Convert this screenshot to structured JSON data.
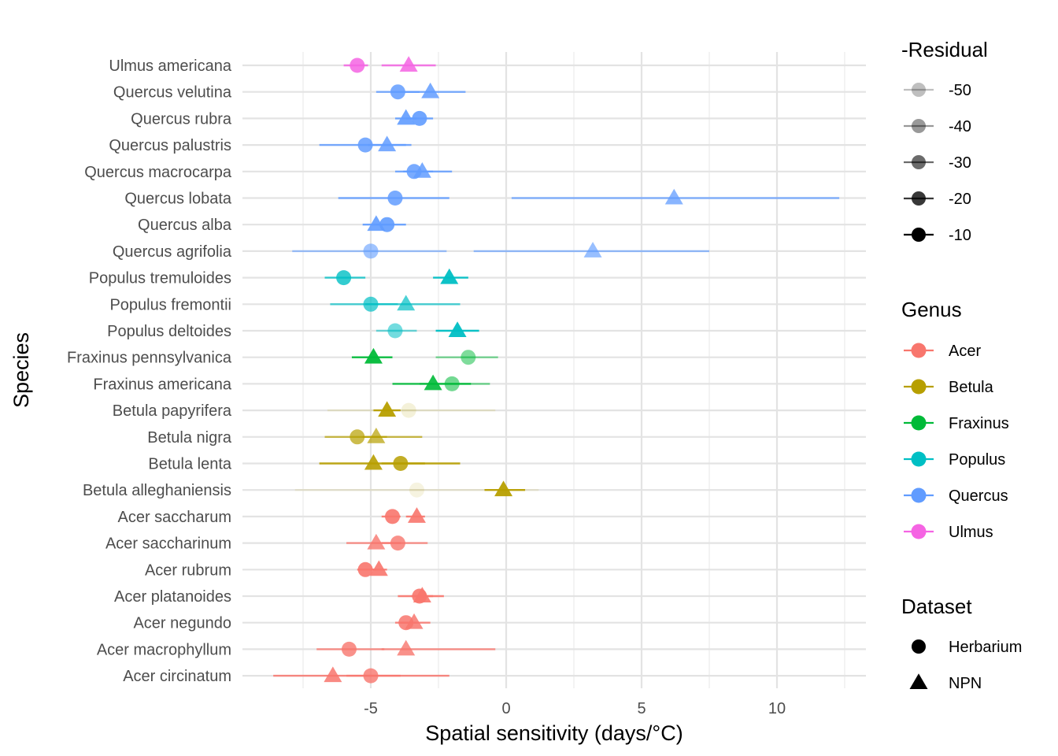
{
  "chart_data": {
    "type": "scatter",
    "title": "",
    "xlabel": "Spatial sensitivity (days/°C)",
    "ylabel": "Species",
    "xlim": [
      -9.8,
      13.3
    ],
    "xticks": [
      -5,
      0,
      5,
      10
    ],
    "grid": true,
    "species": [
      "Ulmus americana",
      "Quercus velutina",
      "Quercus rubra",
      "Quercus palustris",
      "Quercus macrocarpa",
      "Quercus lobata",
      "Quercus alba",
      "Quercus agrifolia",
      "Populus tremuloides",
      "Populus fremontii",
      "Populus deltoides",
      "Fraxinus pennsylvanica",
      "Fraxinus americana",
      "Betula papyrifera",
      "Betula nigra",
      "Betula lenta",
      "Betula alleghaniensis",
      "Acer saccharum",
      "Acer saccharinum",
      "Acer rubrum",
      "Acer platanoides",
      "Acer negundo",
      "Acer macrophyllum",
      "Acer circinatum"
    ],
    "genus_colors": {
      "Acer": "#F8766D",
      "Betula": "#B79F00",
      "Fraxinus": "#00BA38",
      "Populus": "#00BFC4",
      "Quercus": "#619CFF",
      "Ulmus": "#F564E3"
    },
    "points": [
      {
        "species": "Ulmus americana",
        "genus": "Ulmus",
        "dataset": "Herbarium",
        "x": -5.5,
        "lo": -6.0,
        "hi": -5.1,
        "alpha": 0.85
      },
      {
        "species": "Ulmus americana",
        "genus": "Ulmus",
        "dataset": "NPN",
        "x": -3.6,
        "lo": -4.6,
        "hi": -2.6,
        "alpha": 0.85
      },
      {
        "species": "Quercus velutina",
        "genus": "Quercus",
        "dataset": "Herbarium",
        "x": -4.0,
        "lo": -4.8,
        "hi": -3.2,
        "alpha": 0.85
      },
      {
        "species": "Quercus velutina",
        "genus": "Quercus",
        "dataset": "NPN",
        "x": -2.8,
        "lo": -4.2,
        "hi": -1.5,
        "alpha": 0.85
      },
      {
        "species": "Quercus rubra",
        "genus": "Quercus",
        "dataset": "Herbarium",
        "x": -3.2,
        "lo": -3.7,
        "hi": -2.7,
        "alpha": 0.9
      },
      {
        "species": "Quercus rubra",
        "genus": "Quercus",
        "dataset": "NPN",
        "x": -3.7,
        "lo": -4.1,
        "hi": -3.3,
        "alpha": 0.9
      },
      {
        "species": "Quercus palustris",
        "genus": "Quercus",
        "dataset": "Herbarium",
        "x": -5.2,
        "lo": -6.9,
        "hi": -3.5,
        "alpha": 0.85
      },
      {
        "species": "Quercus palustris",
        "genus": "Quercus",
        "dataset": "NPN",
        "x": -4.4,
        "lo": -5.1,
        "hi": -3.7,
        "alpha": 0.85
      },
      {
        "species": "Quercus macrocarpa",
        "genus": "Quercus",
        "dataset": "Herbarium",
        "x": -3.4,
        "lo": -4.1,
        "hi": -2.7,
        "alpha": 0.85
      },
      {
        "species": "Quercus macrocarpa",
        "genus": "Quercus",
        "dataset": "NPN",
        "x": -3.1,
        "lo": -3.8,
        "hi": -2.0,
        "alpha": 0.85
      },
      {
        "species": "Quercus lobata",
        "genus": "Quercus",
        "dataset": "Herbarium",
        "x": -4.1,
        "lo": -6.2,
        "hi": -2.1,
        "alpha": 0.85
      },
      {
        "species": "Quercus lobata",
        "genus": "Quercus",
        "dataset": "NPN",
        "x": 6.2,
        "lo": 0.2,
        "hi": 12.3,
        "alpha": 0.75
      },
      {
        "species": "Quercus alba",
        "genus": "Quercus",
        "dataset": "Herbarium",
        "x": -4.4,
        "lo": -4.8,
        "hi": -3.7,
        "alpha": 0.9
      },
      {
        "species": "Quercus alba",
        "genus": "Quercus",
        "dataset": "NPN",
        "x": -4.8,
        "lo": -5.3,
        "hi": -4.3,
        "alpha": 0.9
      },
      {
        "species": "Quercus agrifolia",
        "genus": "Quercus",
        "dataset": "Herbarium",
        "x": -5.0,
        "lo": -7.9,
        "hi": -2.2,
        "alpha": 0.6
      },
      {
        "species": "Quercus agrifolia",
        "genus": "Quercus",
        "dataset": "NPN",
        "x": 3.2,
        "lo": -1.2,
        "hi": 7.5,
        "alpha": 0.65
      },
      {
        "species": "Populus tremuloides",
        "genus": "Populus",
        "dataset": "Herbarium",
        "x": -6.0,
        "lo": -6.7,
        "hi": -5.2,
        "alpha": 0.8
      },
      {
        "species": "Populus tremuloides",
        "genus": "Populus",
        "dataset": "NPN",
        "x": -2.1,
        "lo": -2.7,
        "hi": -1.4,
        "alpha": 0.95
      },
      {
        "species": "Populus fremontii",
        "genus": "Populus",
        "dataset": "Herbarium",
        "x": -5.0,
        "lo": -6.5,
        "hi": -4.0,
        "alpha": 0.7
      },
      {
        "species": "Populus fremontii",
        "genus": "Populus",
        "dataset": "NPN",
        "x": -3.7,
        "lo": -5.2,
        "hi": -1.7,
        "alpha": 0.7
      },
      {
        "species": "Populus deltoides",
        "genus": "Populus",
        "dataset": "Herbarium",
        "x": -4.1,
        "lo": -4.8,
        "hi": -3.3,
        "alpha": 0.55
      },
      {
        "species": "Populus deltoides",
        "genus": "Populus",
        "dataset": "NPN",
        "x": -1.8,
        "lo": -2.6,
        "hi": -1.0,
        "alpha": 0.95
      },
      {
        "species": "Fraxinus pennsylvanica",
        "genus": "Fraxinus",
        "dataset": "Herbarium",
        "x": -1.4,
        "lo": -2.6,
        "hi": -0.3,
        "alpha": 0.5
      },
      {
        "species": "Fraxinus pennsylvanica",
        "genus": "Fraxinus",
        "dataset": "NPN",
        "x": -4.9,
        "lo": -5.7,
        "hi": -4.2,
        "alpha": 0.95
      },
      {
        "species": "Fraxinus americana",
        "genus": "Fraxinus",
        "dataset": "Herbarium",
        "x": -2.0,
        "lo": -3.2,
        "hi": -0.6,
        "alpha": 0.55
      },
      {
        "species": "Fraxinus americana",
        "genus": "Fraxinus",
        "dataset": "NPN",
        "x": -2.7,
        "lo": -4.2,
        "hi": -1.3,
        "alpha": 0.9
      },
      {
        "species": "Betula papyrifera",
        "genus": "Betula",
        "dataset": "Herbarium",
        "x": -3.6,
        "lo": -6.6,
        "hi": -0.4,
        "alpha": 0.15
      },
      {
        "species": "Betula papyrifera",
        "genus": "Betula",
        "dataset": "NPN",
        "x": -4.4,
        "lo": -4.9,
        "hi": -3.9,
        "alpha": 0.95
      },
      {
        "species": "Betula nigra",
        "genus": "Betula",
        "dataset": "Herbarium",
        "x": -5.5,
        "lo": -6.7,
        "hi": -4.4,
        "alpha": 0.7
      },
      {
        "species": "Betula nigra",
        "genus": "Betula",
        "dataset": "NPN",
        "x": -4.8,
        "lo": -5.3,
        "hi": -3.1,
        "alpha": 0.7
      },
      {
        "species": "Betula lenta",
        "genus": "Betula",
        "dataset": "Herbarium",
        "x": -3.9,
        "lo": -4.6,
        "hi": -3.0,
        "alpha": 0.85
      },
      {
        "species": "Betula lenta",
        "genus": "Betula",
        "dataset": "NPN",
        "x": -4.9,
        "lo": -6.9,
        "hi": -1.7,
        "alpha": 0.9
      },
      {
        "species": "Betula alleghaniensis",
        "genus": "Betula",
        "dataset": "Herbarium",
        "x": -3.3,
        "lo": -7.8,
        "hi": 1.2,
        "alpha": 0.12
      },
      {
        "species": "Betula alleghaniensis",
        "genus": "Betula",
        "dataset": "NPN",
        "x": -0.1,
        "lo": -0.8,
        "hi": 0.7,
        "alpha": 0.95
      },
      {
        "species": "Acer saccharum",
        "genus": "Acer",
        "dataset": "Herbarium",
        "x": -4.2,
        "lo": -4.6,
        "hi": -3.9,
        "alpha": 0.9
      },
      {
        "species": "Acer saccharum",
        "genus": "Acer",
        "dataset": "NPN",
        "x": -3.3,
        "lo": -3.7,
        "hi": -3.0,
        "alpha": 0.9
      },
      {
        "species": "Acer saccharinum",
        "genus": "Acer",
        "dataset": "Herbarium",
        "x": -4.0,
        "lo": -4.6,
        "hi": -2.9,
        "alpha": 0.8
      },
      {
        "species": "Acer saccharinum",
        "genus": "Acer",
        "dataset": "NPN",
        "x": -4.8,
        "lo": -5.9,
        "hi": -3.9,
        "alpha": 0.8
      },
      {
        "species": "Acer rubrum",
        "genus": "Acer",
        "dataset": "Herbarium",
        "x": -5.2,
        "lo": -5.5,
        "hi": -4.8,
        "alpha": 0.9
      },
      {
        "species": "Acer rubrum",
        "genus": "Acer",
        "dataset": "NPN",
        "x": -4.7,
        "lo": -5.0,
        "hi": -4.4,
        "alpha": 0.9
      },
      {
        "species": "Acer platanoides",
        "genus": "Acer",
        "dataset": "Herbarium",
        "x": -3.2,
        "lo": -4.0,
        "hi": -2.3,
        "alpha": 0.9
      },
      {
        "species": "Acer platanoides",
        "genus": "Acer",
        "dataset": "NPN",
        "x": -3.1,
        "lo": -3.5,
        "hi": -2.7,
        "alpha": 0.9
      },
      {
        "species": "Acer negundo",
        "genus": "Acer",
        "dataset": "Herbarium",
        "x": -3.7,
        "lo": -4.1,
        "hi": -3.3,
        "alpha": 0.85
      },
      {
        "species": "Acer negundo",
        "genus": "Acer",
        "dataset": "NPN",
        "x": -3.4,
        "lo": -3.9,
        "hi": -2.8,
        "alpha": 0.85
      },
      {
        "species": "Acer macrophyllum",
        "genus": "Acer",
        "dataset": "Herbarium",
        "x": -5.8,
        "lo": -7.0,
        "hi": -4.5,
        "alpha": 0.8
      },
      {
        "species": "Acer macrophyllum",
        "genus": "Acer",
        "dataset": "NPN",
        "x": -3.7,
        "lo": -4.6,
        "hi": -0.4,
        "alpha": 0.8
      },
      {
        "species": "Acer circinatum",
        "genus": "Acer",
        "dataset": "Herbarium",
        "x": -5.0,
        "lo": -5.9,
        "hi": -3.9,
        "alpha": 0.8
      },
      {
        "species": "Acer circinatum",
        "genus": "Acer",
        "dataset": "NPN",
        "x": -6.4,
        "lo": -8.6,
        "hi": -2.1,
        "alpha": 0.85
      }
    ],
    "legends": {
      "residual": {
        "title": "-Residual",
        "entries": [
          {
            "label": "-50",
            "alpha": 0.25
          },
          {
            "label": "-40",
            "alpha": 0.4
          },
          {
            "label": "-30",
            "alpha": 0.58
          },
          {
            "label": "-20",
            "alpha": 0.78
          },
          {
            "label": "-10",
            "alpha": 1.0
          }
        ]
      },
      "genus": {
        "title": "Genus",
        "entries": [
          "Acer",
          "Betula",
          "Fraxinus",
          "Populus",
          "Quercus",
          "Ulmus"
        ]
      },
      "dataset": {
        "title": "Dataset",
        "entries": [
          {
            "label": "Herbarium",
            "shape": "circle"
          },
          {
            "label": "NPN",
            "shape": "triangle"
          }
        ]
      }
    }
  }
}
